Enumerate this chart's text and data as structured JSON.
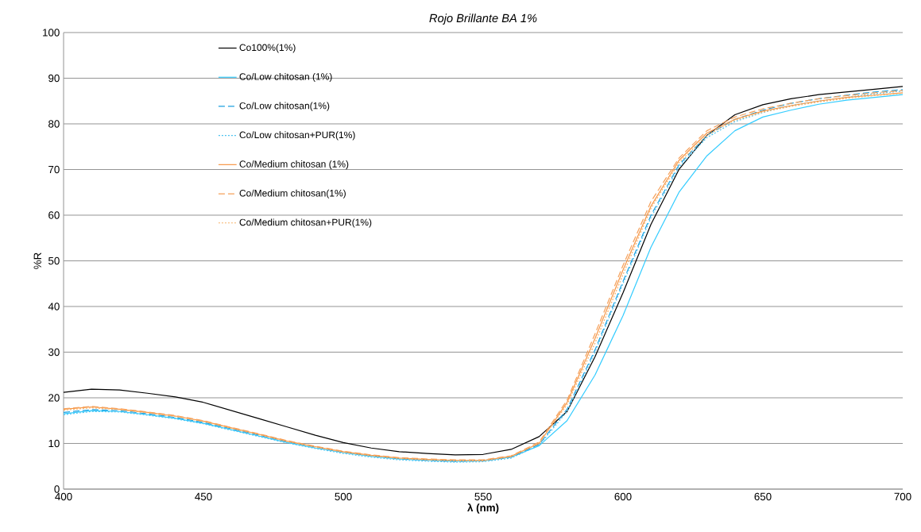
{
  "chart_data": {
    "type": "line",
    "title": "Rojo Brillante BA 1%",
    "xlabel": "λ (nm)",
    "ylabel": "%R",
    "x": [
      400,
      410,
      420,
      430,
      440,
      450,
      460,
      470,
      480,
      490,
      500,
      510,
      520,
      530,
      540,
      550,
      560,
      570,
      580,
      590,
      600,
      610,
      620,
      630,
      640,
      650,
      660,
      670,
      680,
      690,
      700
    ],
    "series": [
      {
        "name": "Co100%(1%)",
        "color": "#000000",
        "line_style": "solid",
        "values": [
          21.2,
          21.9,
          21.7,
          21.0,
          20.2,
          19.0,
          17.2,
          15.4,
          13.6,
          11.8,
          10.2,
          9.0,
          8.2,
          7.8,
          7.5,
          7.6,
          8.7,
          11.5,
          17,
          29,
          43,
          58,
          70,
          77.5,
          82,
          84.2,
          85.5,
          86.4,
          87,
          87.6,
          88.2
        ]
      },
      {
        "name": "Co/Low chitosan (1%)",
        "color": "#33ccff",
        "line_style": "solid",
        "values": [
          16.5,
          17.2,
          17.0,
          16.3,
          15.5,
          14.4,
          13.0,
          11.6,
          10.2,
          9.0,
          8.0,
          7.2,
          6.6,
          6.3,
          6.1,
          6.2,
          7.0,
          9.5,
          15,
          25,
          38,
          53,
          65,
          73,
          78.5,
          81.5,
          83,
          84.3,
          85.2,
          85.8,
          86.4
        ]
      },
      {
        "name": "Co/Low chitosan(1%)",
        "color": "#1ca0e0",
        "line_style": "dashed",
        "values": [
          16.8,
          17.4,
          17.2,
          16.5,
          15.7,
          14.6,
          13.2,
          11.8,
          10.4,
          9.2,
          8.1,
          7.3,
          6.7,
          6.3,
          6.1,
          6.2,
          7.0,
          9.8,
          17.5,
          30.5,
          45.5,
          60,
          71,
          77.5,
          81,
          83,
          84.5,
          85.5,
          86.3,
          87,
          87.5
        ]
      },
      {
        "name": "Co/Low chitosan+PUR(1%)",
        "color": "#4dc3f0",
        "line_style": "dotted",
        "values": [
          16.3,
          17.0,
          16.9,
          16.2,
          15.4,
          14.3,
          12.9,
          11.5,
          10.1,
          8.9,
          7.8,
          7.0,
          6.4,
          6.1,
          5.9,
          6.0,
          6.8,
          9.6,
          17,
          30,
          45,
          59.5,
          70.5,
          77,
          80.5,
          82.5,
          84,
          85,
          85.8,
          86.6,
          87.2
        ]
      },
      {
        "name": "Co/Medium chitosan (1%)",
        "color": "#f79646",
        "line_style": "solid",
        "values": [
          17.5,
          18.0,
          17.5,
          16.8,
          16.0,
          14.9,
          13.4,
          12.0,
          10.5,
          9.3,
          8.2,
          7.4,
          6.8,
          6.5,
          6.3,
          6.3,
          7.2,
          10.0,
          19,
          33,
          48,
          62,
          72,
          78,
          81,
          82.8,
          84,
          85,
          85.8,
          86.3,
          86.8
        ]
      },
      {
        "name": "Co/Medium chitosan(1%)",
        "color": "#f5a05a",
        "line_style": "dashed",
        "values": [
          17.6,
          18.1,
          17.6,
          16.9,
          16.1,
          15.0,
          13.5,
          12.1,
          10.6,
          9.4,
          8.3,
          7.5,
          6.9,
          6.6,
          6.4,
          6.4,
          7.3,
          10.3,
          19.5,
          34,
          49,
          63,
          72.5,
          78.5,
          81.5,
          83.3,
          84.5,
          85.5,
          86.2,
          86.8,
          87.3
        ]
      },
      {
        "name": "Co/Medium chitosan+PUR(1%)",
        "color": "#f7b26a",
        "line_style": "dotted",
        "values": [
          17.3,
          17.8,
          17.4,
          16.7,
          15.9,
          14.8,
          13.3,
          11.9,
          10.4,
          9.2,
          8.1,
          7.3,
          6.7,
          6.4,
          6.2,
          6.2,
          7.1,
          10.1,
          18.5,
          32,
          47,
          61.5,
          71.5,
          77.5,
          80.8,
          82.6,
          83.8,
          84.8,
          85.6,
          86.2,
          86.7
        ]
      }
    ],
    "xlim": [
      400,
      700
    ],
    "ylim": [
      0,
      100
    ],
    "xticks": [
      400,
      450,
      500,
      550,
      600,
      650,
      700
    ],
    "yticks": [
      0,
      10,
      20,
      30,
      40,
      50,
      60,
      70,
      80,
      90,
      100
    ],
    "grid": "y",
    "legend": "top left"
  }
}
